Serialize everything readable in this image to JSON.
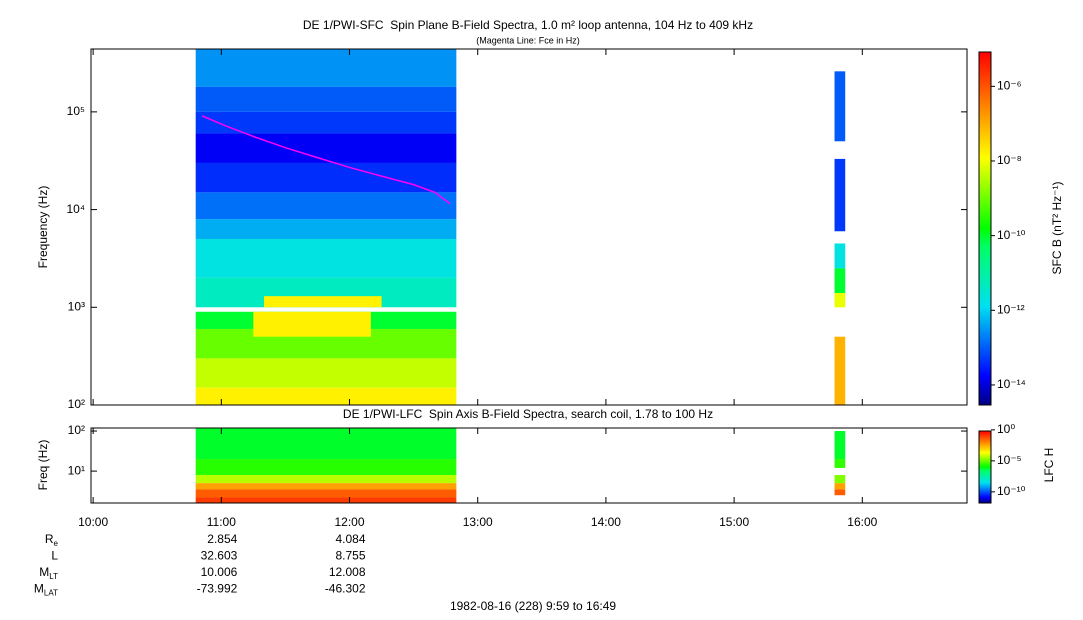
{
  "chart_data": [
    {
      "type": "spectrogram",
      "title": "DE 1/PWI-SFC  Spin Plane B-Field Spectra, 1.0 m² loop antenna, 104 Hz to 409 kHz",
      "subtitle": "(Magenta Line: Fce in Hz)",
      "ylabel": "Frequency (Hz)",
      "log_y": true,
      "xlim": [
        599,
        1009
      ],
      "ylim": [
        100,
        440000
      ],
      "yticks": [
        {
          "value": 100,
          "label": "10²"
        },
        {
          "value": 1000,
          "label": "10³"
        },
        {
          "value": 10000,
          "label": "10⁴"
        },
        {
          "value": 100000,
          "label": "10⁵"
        }
      ],
      "colorbar": {
        "label": "SFC B (nT² Hz⁻¹)",
        "lim": [
          2.9e-15,
          1e-05
        ],
        "ticks": [
          {
            "value": 1e-06,
            "label": "10⁻⁶"
          },
          {
            "value": 1e-08,
            "label": "10⁻⁸"
          },
          {
            "value": 1e-10,
            "label": "10⁻¹⁰"
          },
          {
            "value": 1e-12,
            "label": "10⁻¹²"
          },
          {
            "value": 1e-14,
            "label": "10⁻¹⁴"
          }
        ]
      },
      "cells": [
        {
          "t": [
            648,
            770
          ],
          "f": [
            180000,
            440000
          ],
          "v": 3e-13
        },
        {
          "t": [
            648,
            770
          ],
          "f": [
            100000,
            180000
          ],
          "v": 1e-13
        },
        {
          "t": [
            648,
            770
          ],
          "f": [
            60000,
            100000
          ],
          "v": 5e-14
        },
        {
          "t": [
            648,
            770
          ],
          "f": [
            30000,
            60000
          ],
          "v": 1.5e-14
        },
        {
          "t": [
            648,
            770
          ],
          "f": [
            15000,
            30000
          ],
          "v": 4e-14
        },
        {
          "t": [
            648,
            770
          ],
          "f": [
            8000,
            15000
          ],
          "v": 1.5e-13
        },
        {
          "t": [
            648,
            770
          ],
          "f": [
            5000,
            8000
          ],
          "v": 5e-13
        },
        {
          "t": [
            648,
            770
          ],
          "f": [
            2000,
            5000
          ],
          "v": 2e-12
        },
        {
          "t": [
            648,
            770
          ],
          "f": [
            1000,
            2000
          ],
          "v": 5e-12
        },
        {
          "t": [
            680,
            735
          ],
          "f": [
            1000,
            1300
          ],
          "v": 2e-08
        },
        {
          "t": [
            648,
            770
          ],
          "f": [
            600,
            900
          ],
          "v": 1e-10
        },
        {
          "t": [
            648,
            770
          ],
          "f": [
            300,
            600
          ],
          "v": 1e-09
        },
        {
          "t": [
            675,
            730
          ],
          "f": [
            500,
            900
          ],
          "v": 2e-08
        },
        {
          "t": [
            648,
            770
          ],
          "f": [
            150,
            300
          ],
          "v": 5e-09
        },
        {
          "t": [
            648,
            770
          ],
          "f": [
            100,
            150
          ],
          "v": 2e-08
        },
        {
          "t": [
            947,
            952
          ],
          "f": [
            50000,
            260000
          ],
          "v": 1e-13
        },
        {
          "t": [
            947,
            952
          ],
          "f": [
            6000,
            33000
          ],
          "v": 5e-14
        },
        {
          "t": [
            947,
            952
          ],
          "f": [
            2500,
            4500
          ],
          "v": 2e-12
        },
        {
          "t": [
            947,
            952
          ],
          "f": [
            1400,
            2500
          ],
          "v": 1e-10
        },
        {
          "t": [
            947,
            952
          ],
          "f": [
            1000,
            1400
          ],
          "v": 1e-08
        },
        {
          "t": [
            947,
            952
          ],
          "f": [
            100,
            500
          ],
          "v": 1e-07
        }
      ],
      "line": {
        "color": "#ff00ff",
        "x": [
          651,
          662,
          675,
          690,
          705,
          720,
          735,
          750,
          760,
          767
        ],
        "values": [
          91000,
          72000,
          56000,
          43000,
          34000,
          27000,
          22000,
          18000,
          15000,
          11500
        ]
      }
    },
    {
      "type": "spectrogram",
      "title": "DE 1/PWI-LFC  Spin Axis B-Field Spectra, search coil, 1.78 to 100 Hz",
      "ylabel": "Freq (Hz)",
      "log_y": true,
      "xlim": [
        599,
        1009
      ],
      "xticks": [
        {
          "value": 600,
          "label": "10:00"
        },
        {
          "value": 660,
          "label": "11:00"
        },
        {
          "value": 720,
          "label": "12:00"
        },
        {
          "value": 780,
          "label": "13:00"
        },
        {
          "value": 840,
          "label": "14:00"
        },
        {
          "value": 900,
          "label": "15:00"
        },
        {
          "value": 960,
          "label": "16:00"
        }
      ],
      "ylim": [
        1.6,
        119
      ],
      "yticks": [
        {
          "value": 10,
          "label": "10¹"
        },
        {
          "value": 100,
          "label": "10²"
        }
      ],
      "colorbar": {
        "label": "LFC H",
        "lim": [
          1.6e-12,
          2
        ],
        "ticks": [
          {
            "value": 1,
            "label": "10⁰"
          },
          {
            "value": 1e-05,
            "label": "10⁻⁵"
          },
          {
            "value": 1e-10,
            "label": "10⁻¹⁰"
          }
        ]
      },
      "cells": [
        {
          "t": [
            648,
            770
          ],
          "f": [
            20,
            119
          ],
          "v": 1e-06
        },
        {
          "t": [
            648,
            770
          ],
          "f": [
            8,
            20
          ],
          "v": 4e-06
        },
        {
          "t": [
            648,
            770
          ],
          "f": [
            5,
            8
          ],
          "v": 0.0001
        },
        {
          "t": [
            648,
            770
          ],
          "f": [
            3.5,
            5
          ],
          "v": 0.01
        },
        {
          "t": [
            648,
            770
          ],
          "f": [
            2.2,
            3.5
          ],
          "v": 0.1
        },
        {
          "t": [
            648,
            770
          ],
          "f": [
            1.6,
            2.2
          ],
          "v": 0.3
        },
        {
          "t": [
            947,
            952
          ],
          "f": [
            20,
            100
          ],
          "v": 1e-06
        },
        {
          "t": [
            947,
            952
          ],
          "f": [
            12,
            20
          ],
          "v": 5e-06
        },
        {
          "t": [
            947,
            952
          ],
          "f": [
            5,
            8
          ],
          "v": 3e-05
        },
        {
          "t": [
            947,
            952
          ],
          "f": [
            3.5,
            5
          ],
          "v": 0.01
        },
        {
          "t": [
            947,
            952
          ],
          "f": [
            2.5,
            3.5
          ],
          "v": 0.1
        }
      ]
    }
  ],
  "ephemeris": [
    {
      "label": "R",
      "sub": "e",
      "values": [
        2.854,
        4.084
      ]
    },
    {
      "label": "L",
      "values": [
        32.603,
        8.755
      ]
    },
    {
      "label": "M",
      "sub": "LT",
      "values": [
        10.006,
        12.008
      ]
    },
    {
      "label": "M",
      "sub": "LAT",
      "values": [
        -73.992,
        -46.302
      ]
    }
  ],
  "footer": "1982-08-16 (228) 9:59 to 16:49"
}
